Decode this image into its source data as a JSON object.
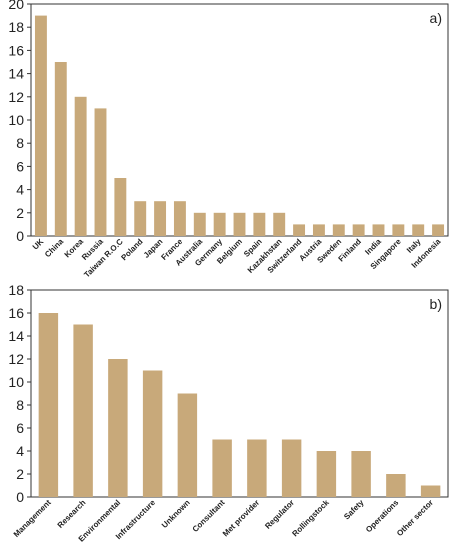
{
  "chart_data": [
    {
      "type": "bar",
      "label": "a)",
      "categories": [
        "UK",
        "China",
        "Korea",
        "Russia",
        "Taiwan R.O.C",
        "Poland",
        "Japan",
        "France",
        "Australia",
        "Germany",
        "Belgium",
        "Spain",
        "Kazakhstan",
        "Switzerland",
        "Austria",
        "Sweden",
        "Finland",
        "India",
        "Singapore",
        "Italy",
        "Indonesia"
      ],
      "values": [
        19,
        15,
        12,
        11,
        5,
        3,
        3,
        3,
        2,
        2,
        2,
        2,
        2,
        1,
        1,
        1,
        1,
        1,
        1,
        1,
        1
      ],
      "yticks": [
        0,
        2,
        4,
        6,
        8,
        10,
        12,
        14,
        16,
        18,
        20
      ],
      "ylim": [
        0,
        20
      ],
      "bar_color": "#c8a97a",
      "grid": false
    },
    {
      "type": "bar",
      "label": "b)",
      "categories": [
        "Management",
        "Research",
        "Environmental",
        "Infrastructure",
        "Unknown",
        "Consultant",
        "Met provider",
        "Regulator",
        "Rollingstock",
        "Safety",
        "Operations",
        "Other sector"
      ],
      "values": [
        16,
        15,
        12,
        11,
        9,
        5,
        5,
        5,
        4,
        4,
        2,
        1
      ],
      "yticks": [
        0,
        2,
        4,
        6,
        8,
        10,
        12,
        14,
        16,
        18
      ],
      "ylim": [
        0,
        18
      ],
      "bar_color": "#c8a97a",
      "grid": false
    }
  ]
}
